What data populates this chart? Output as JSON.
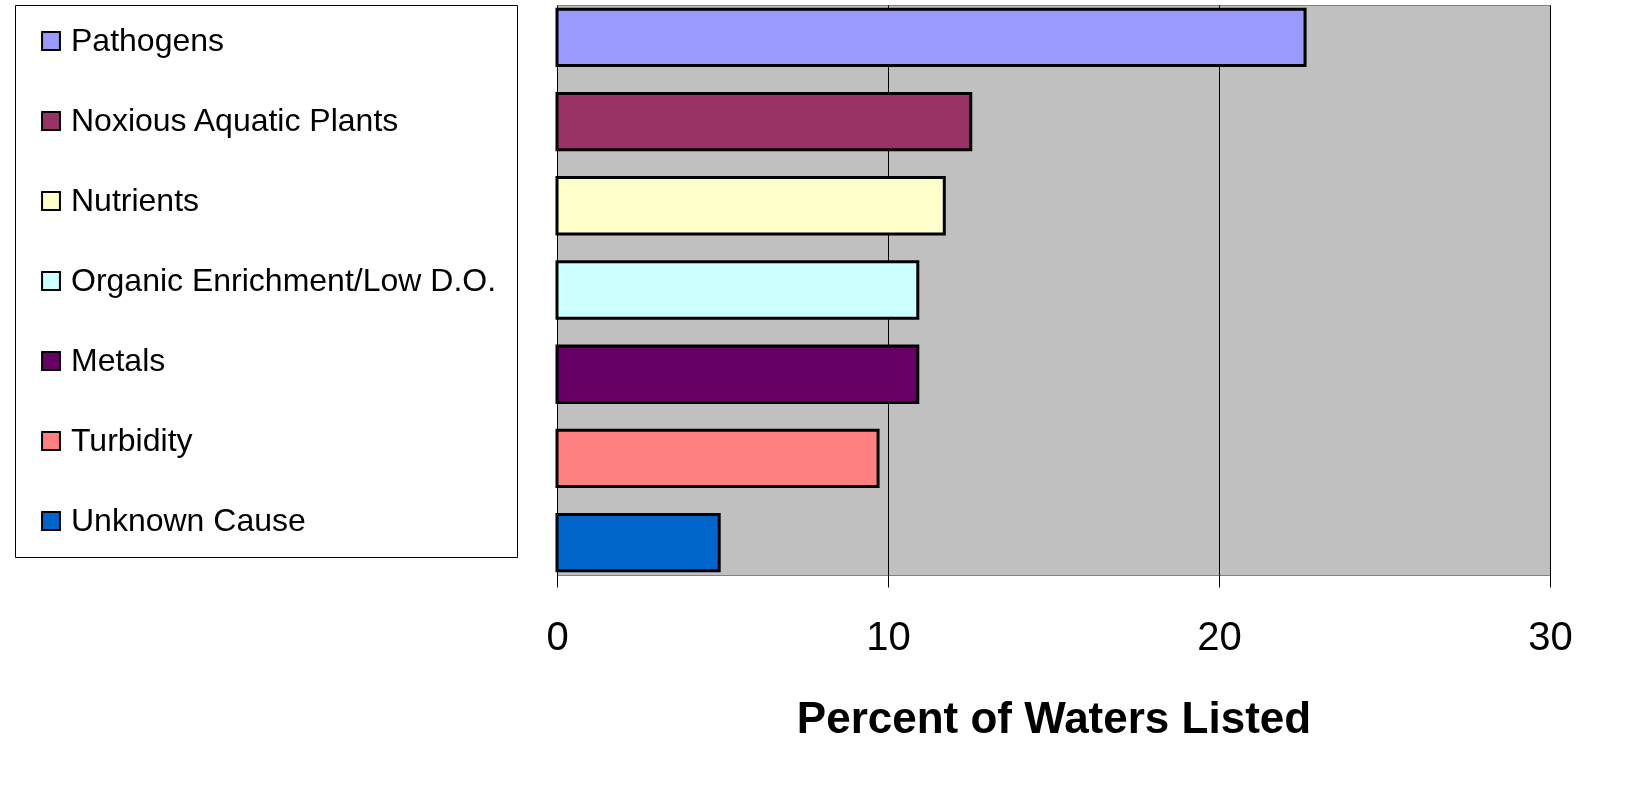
{
  "chart_data": {
    "type": "bar",
    "orientation": "horizontal",
    "xlabel": "Percent of Waters Listed",
    "categories": [
      null,
      null,
      null,
      null,
      null,
      null,
      null
    ],
    "series": [
      {
        "name": "Pathogens",
        "color": "#9999ff",
        "values": [
          22.6,
          null,
          null,
          null,
          null,
          null,
          null
        ]
      },
      {
        "name": "Noxious Aquatic Plants",
        "color": "#993366",
        "values": [
          null,
          12.5,
          null,
          null,
          null,
          null,
          null
        ]
      },
      {
        "name": "Nutrients",
        "color": "#ffffcc",
        "values": [
          null,
          null,
          11.7,
          null,
          null,
          null,
          null
        ]
      },
      {
        "name": "Organic Enrichment/Low D.O.",
        "color": "#ccffff",
        "values": [
          null,
          null,
          null,
          10.9,
          null,
          null,
          null
        ]
      },
      {
        "name": "Metals",
        "color": "#660066",
        "values": [
          null,
          null,
          null,
          null,
          10.9,
          null,
          null
        ]
      },
      {
        "name": "Turbidity",
        "color": "#ff8080",
        "values": [
          null,
          null,
          null,
          null,
          null,
          9.7,
          null
        ]
      },
      {
        "name": "Unknown Cause",
        "color": "#0066cc",
        "values": [
          null,
          null,
          null,
          null,
          null,
          null,
          4.9
        ]
      }
    ],
    "xlim": [
      0,
      30
    ],
    "xticks": [
      0,
      10,
      20,
      30
    ],
    "grid": "x",
    "legend": "left",
    "tick_labels": "x"
  }
}
